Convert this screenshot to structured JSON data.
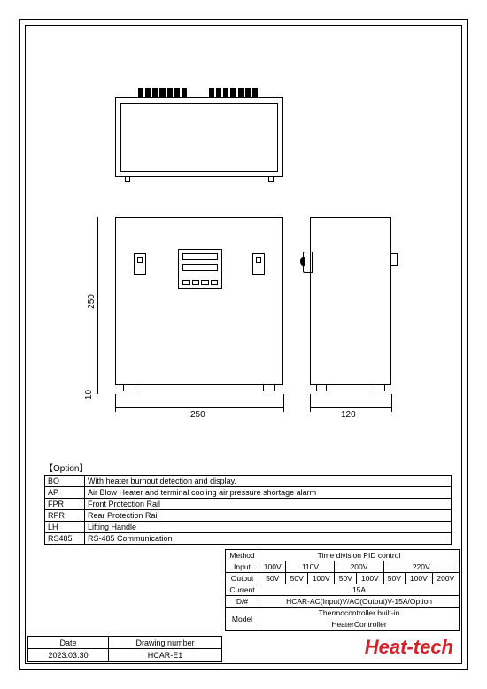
{
  "dimensions": {
    "height_250": "250",
    "gap_10": "10",
    "width_250": "250",
    "depth_120": "120"
  },
  "option": {
    "title": "【Option】",
    "rows": [
      {
        "code": "BO",
        "desc": "With heater burnout detection and display."
      },
      {
        "code": "AP",
        "desc": "Air Blow Heater and terminal cooling air pressure shortage alarm"
      },
      {
        "code": "FPR",
        "desc": "Front Protection Rail"
      },
      {
        "code": "RPR",
        "desc": "Rear Protection Rail"
      },
      {
        "code": "LH",
        "desc": "Lifting Handle"
      },
      {
        "code": "RS485",
        "desc": "RS-485 Communication"
      }
    ]
  },
  "spec": {
    "method_label": "Method",
    "method_value": "Time division PID control",
    "input_label": "Input",
    "input_values": [
      "100V",
      "110V",
      "200V",
      "220V"
    ],
    "output_label": "Output",
    "output_values": [
      "50V",
      "50V",
      "100V",
      "50V",
      "100V",
      "50V",
      "100V",
      "200V"
    ],
    "current_label": "Current",
    "current_value": "15A",
    "dnum_label": "D/#",
    "dnum_value": "HCAR-AC(Input)V/AC(Output)V-15A/Option",
    "model_label": "Model",
    "model_value_l1": "Thermocontroller built-in",
    "model_value_l2": "HeaterController"
  },
  "titleblock": {
    "date_label": "Date",
    "date_value": "2023.03.30",
    "drawing_label": "Drawing number",
    "drawing_value": "HCAR-E1"
  },
  "brand": "Heat-tech"
}
